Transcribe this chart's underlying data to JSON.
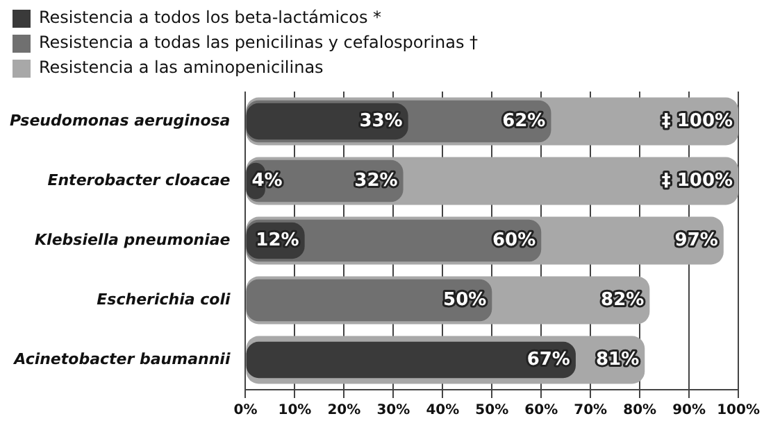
{
  "chart_data": {
    "type": "bar",
    "orientation": "horizontal",
    "categories": [
      "Pseudomonas aeruginosa",
      "Enterobacter cloacae",
      "Klebsiella pneumoniae",
      "Escherichia coli",
      "Acinetobacter baumannii"
    ],
    "series": [
      {
        "name": "Resistencia a todos los beta-lactámicos *",
        "color": "#3a3a3a",
        "values": [
          33,
          4,
          12,
          null,
          67
        ],
        "value_labels": [
          "33%",
          "4%",
          "12%",
          null,
          "67%"
        ]
      },
      {
        "name": "Resistencia a todas las penicilinas y cefalosporinas †",
        "color": "#707070",
        "values": [
          62,
          32,
          60,
          50,
          null
        ],
        "value_labels": [
          "62%",
          "32%",
          "60%",
          "50%",
          null
        ]
      },
      {
        "name": "Resistencia a las aminopenicilinas",
        "color": "#a8a8a8",
        "values": [
          100,
          100,
          97,
          82,
          81
        ],
        "value_labels": [
          "‡ 100%",
          "‡ 100%",
          "97%",
          "82%",
          "81%"
        ]
      }
    ],
    "xlim": [
      0,
      100
    ],
    "xticks": [
      {
        "value": 0,
        "label": "0%"
      },
      {
        "value": 10,
        "label": "10%"
      },
      {
        "value": 20,
        "label": "20%"
      },
      {
        "value": 30,
        "label": "30%"
      },
      {
        "value": 40,
        "label": "40%"
      },
      {
        "value": 50,
        "label": "50%"
      },
      {
        "value": 60,
        "label": "60%"
      },
      {
        "value": 70,
        "label": "70%"
      },
      {
        "value": 80,
        "label": "80%"
      },
      {
        "value": 90,
        "label": "90%"
      },
      {
        "value": 100,
        "label": "100%"
      }
    ],
    "grid": "x",
    "legend": "top left"
  }
}
